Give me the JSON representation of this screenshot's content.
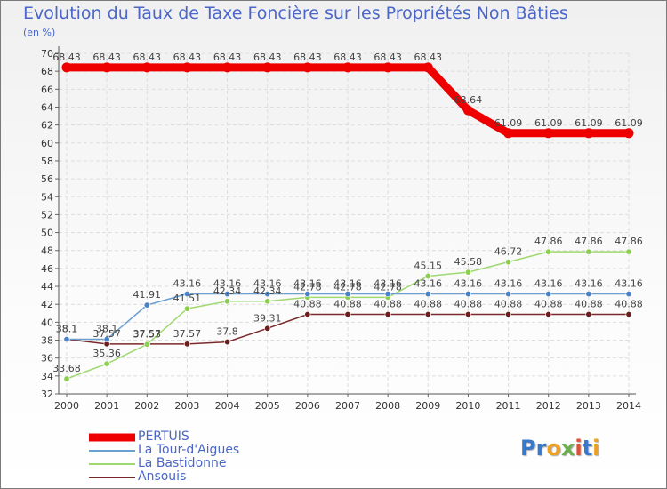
{
  "title": "Evolution du Taux de Taxe Foncière sur les Propriétés Non Bâties",
  "subtitle": "(en %)",
  "logo": {
    "letters": [
      "P",
      "r",
      "o",
      "x",
      "i",
      "t",
      "i"
    ],
    "colors": [
      "#3a78c9",
      "#3a78c9",
      "#f0a020",
      "#6ab04c",
      "#e05030",
      "#3a78c9",
      "#f0a020"
    ]
  },
  "chart_data": {
    "type": "line",
    "title": "Evolution du Taux de Taxe Foncière sur les Propriétés Non Bâties",
    "ylabel": "(en %)",
    "xlabel": "",
    "ylim": [
      32,
      70
    ],
    "yticks": [
      32,
      34,
      36,
      38,
      40,
      42,
      44,
      46,
      48,
      50,
      52,
      54,
      56,
      58,
      60,
      62,
      64,
      66,
      68,
      70
    ],
    "x": [
      2000,
      2001,
      2002,
      2003,
      2004,
      2005,
      2006,
      2007,
      2008,
      2009,
      2010,
      2011,
      2012,
      2013,
      2014
    ],
    "grid": true,
    "legend_position": "bottom-left",
    "series": [
      {
        "name": "PERTUIS",
        "color": "#ee0000",
        "marker_color": "#ee0000",
        "width": 9,
        "values": [
          68.43,
          68.43,
          68.43,
          68.43,
          68.43,
          68.43,
          68.43,
          68.43,
          68.43,
          68.43,
          63.64,
          61.09,
          61.09,
          61.09,
          61.09
        ],
        "labels": [
          "68.43",
          "68.43",
          "68.43",
          "68.43",
          "68.43",
          "68.43",
          "68.43",
          "68.43",
          "68.43",
          "68.43",
          "63.64",
          "61.09",
          "61.09",
          "61.09",
          "61.09"
        ]
      },
      {
        "name": "La Tour-d'Aigues",
        "color": "#6a9fd0",
        "marker_color": "#4a82c8",
        "width": 1.5,
        "values": [
          38.1,
          38.1,
          41.91,
          43.16,
          43.16,
          43.16,
          43.16,
          43.16,
          43.16,
          43.16,
          43.16,
          43.16,
          43.16,
          43.16,
          43.16
        ],
        "labels": [
          "38.1",
          "38.1",
          "41.91",
          "43.16",
          "43.16",
          "43.16",
          "43.16",
          "43.16",
          "43.16",
          "43.16",
          "43.16",
          "43.16",
          "43.16",
          "43.16",
          "43.16"
        ]
      },
      {
        "name": "La Bastidonne",
        "color": "#9fd870",
        "marker_color": "#8ccf50",
        "width": 1.5,
        "values": [
          33.68,
          35.36,
          37.53,
          41.51,
          42.34,
          42.34,
          42.78,
          42.78,
          42.78,
          45.15,
          45.58,
          46.72,
          47.86,
          47.86,
          47.86
        ],
        "labels": [
          "33.68",
          "35.36",
          "37.53",
          "41.51",
          "42.34",
          "42.34",
          "42.78",
          "42.78",
          "42.78",
          "45.15",
          "45.58",
          "46.72",
          "47.86",
          "47.86",
          "47.86"
        ]
      },
      {
        "name": "Ansouis",
        "color": "#7a2a2a",
        "marker_color": "#6a1e1e",
        "width": 1.5,
        "values": [
          38.1,
          37.57,
          37.57,
          37.57,
          37.8,
          39.31,
          40.88,
          40.88,
          40.88,
          40.88,
          40.88,
          40.88,
          40.88,
          40.88,
          40.88
        ],
        "labels": [
          "38.1",
          "37.57",
          "37.57",
          "37.57",
          "37.8",
          "39.31",
          "40.88",
          "40.88",
          "40.88",
          "40.88",
          "40.88",
          "40.88",
          "40.88",
          "40.88",
          "40.88"
        ]
      }
    ]
  }
}
